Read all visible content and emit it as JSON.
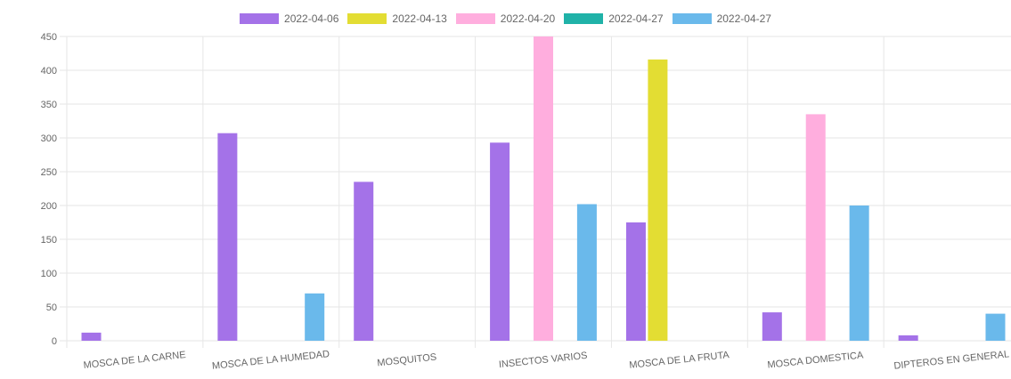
{
  "chart_data": {
    "type": "bar",
    "categories": [
      "MOSCA DE LA CARNE",
      "MOSCA DE LA HUMEDAD",
      "MOSQUITOS",
      "INSECTOS VARIOS",
      "MOSCA DE LA FRUTA",
      "MOSCA DOMESTICA",
      "DIPTEROS EN GENERAL"
    ],
    "series": [
      {
        "name": "2022-04-06",
        "color": "#a472e8",
        "values": [
          12,
          307,
          235,
          293,
          175,
          42,
          8
        ]
      },
      {
        "name": "2022-04-13",
        "color": "#e3dd33",
        "values": [
          0,
          0,
          0,
          0,
          416,
          0,
          0
        ]
      },
      {
        "name": "2022-04-20",
        "color": "#ffaede",
        "values": [
          0,
          0,
          0,
          450,
          0,
          335,
          0
        ]
      },
      {
        "name": "2022-04-27",
        "color": "#20b2a8",
        "values": [
          0,
          0,
          0,
          0,
          0,
          0,
          0
        ]
      },
      {
        "name": "2022-04-27",
        "color": "#6ab9eb",
        "values": [
          0,
          70,
          0,
          202,
          0,
          200,
          40
        ]
      }
    ],
    "ylim": [
      0,
      450
    ],
    "yticks": [
      0,
      50,
      100,
      150,
      200,
      250,
      300,
      350,
      400,
      450
    ],
    "legend_position": "top",
    "grid": true
  }
}
